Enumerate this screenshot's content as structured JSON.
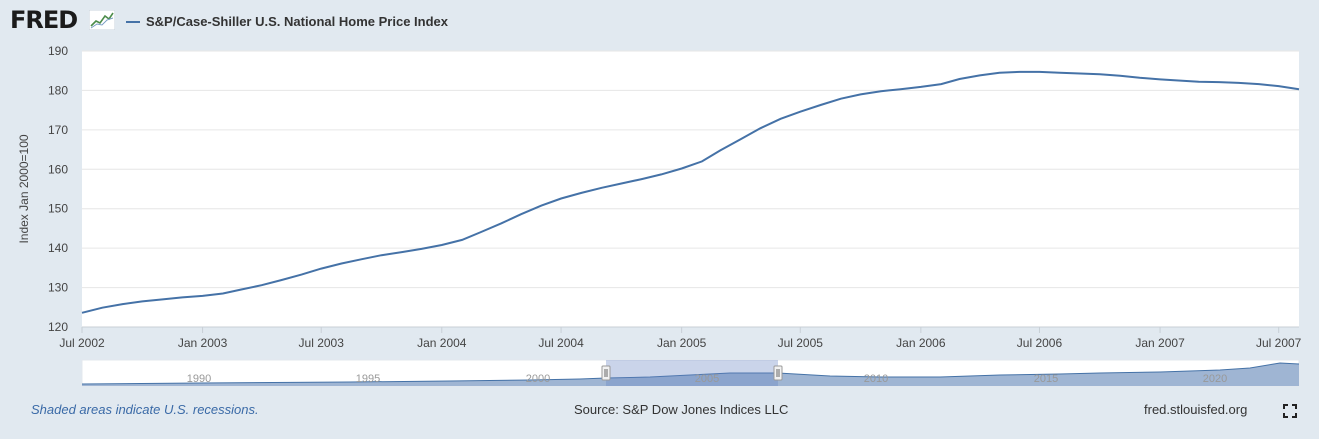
{
  "logo": {
    "text": "FRED",
    "icon": "line-chart-icon"
  },
  "chart_data": {
    "type": "line",
    "title": "S&P/Case-Shiller U.S. National Home Price Index",
    "ylabel": "Index Jan 2000=100",
    "xlabel": "",
    "ylim": [
      120,
      190
    ],
    "xlim": [
      "2002-07-01",
      "2007-08-01"
    ],
    "yticks": [
      120,
      130,
      140,
      150,
      160,
      170,
      180,
      190
    ],
    "xticks": [
      {
        "label": "Jul 2002",
        "date": "2002-07-01"
      },
      {
        "label": "Jan 2003",
        "date": "2003-01-01"
      },
      {
        "label": "Jul 2003",
        "date": "2003-07-01"
      },
      {
        "label": "Jan 2004",
        "date": "2004-01-01"
      },
      {
        "label": "Jul 2004",
        "date": "2004-07-01"
      },
      {
        "label": "Jan 2005",
        "date": "2005-01-01"
      },
      {
        "label": "Jul 2005",
        "date": "2005-07-01"
      },
      {
        "label": "Jan 2006",
        "date": "2006-01-01"
      },
      {
        "label": "Jul 2006",
        "date": "2006-07-01"
      },
      {
        "label": "Jan 2007",
        "date": "2007-01-01"
      },
      {
        "label": "Jul 2007",
        "date": "2007-07-01"
      }
    ],
    "grid": true,
    "series": [
      {
        "name": "S&P/Case-Shiller U.S. National Home Price Index",
        "color": "#4572a7",
        "x": [
          "2002-07-01",
          "2002-08-01",
          "2002-09-01",
          "2002-10-01",
          "2002-11-01",
          "2002-12-01",
          "2003-01-01",
          "2003-02-01",
          "2003-03-01",
          "2003-04-01",
          "2003-05-01",
          "2003-06-01",
          "2003-07-01",
          "2003-08-01",
          "2003-09-01",
          "2003-10-01",
          "2003-11-01",
          "2003-12-01",
          "2004-01-01",
          "2004-02-01",
          "2004-03-01",
          "2004-04-01",
          "2004-05-01",
          "2004-06-01",
          "2004-07-01",
          "2004-08-01",
          "2004-09-01",
          "2004-10-01",
          "2004-11-01",
          "2004-12-01",
          "2005-01-01",
          "2005-02-01",
          "2005-03-01",
          "2005-04-01",
          "2005-05-01",
          "2005-06-01",
          "2005-07-01",
          "2005-08-01",
          "2005-09-01",
          "2005-10-01",
          "2005-11-01",
          "2005-12-01",
          "2006-01-01",
          "2006-02-01",
          "2006-03-01",
          "2006-04-01",
          "2006-05-01",
          "2006-06-01",
          "2006-07-01",
          "2006-08-01",
          "2006-09-01",
          "2006-10-01",
          "2006-11-01",
          "2006-12-01",
          "2007-01-01",
          "2007-02-01",
          "2007-03-01",
          "2007-04-01",
          "2007-05-01",
          "2007-06-01",
          "2007-07-01",
          "2007-08-01"
        ],
        "y": [
          123.6,
          124.9,
          125.8,
          126.5,
          127.0,
          127.5,
          127.9,
          128.5,
          129.5,
          130.6,
          131.9,
          133.3,
          134.8,
          136.1,
          137.2,
          138.2,
          139.0,
          139.8,
          140.8,
          142.1,
          144.1,
          146.3,
          148.6,
          150.8,
          152.6,
          154.0,
          155.3,
          156.4,
          157.5,
          158.7,
          160.2,
          162.0,
          164.8,
          167.6,
          170.4,
          172.8,
          174.6,
          176.3,
          177.9,
          179.0,
          179.8,
          180.3,
          180.9,
          181.6,
          182.9,
          183.8,
          184.5,
          184.7,
          184.7,
          184.5,
          184.3,
          184.1,
          183.7,
          183.2,
          182.8,
          182.5,
          182.2,
          182.1,
          181.9,
          181.6,
          181.1,
          180.3
        ]
      }
    ]
  },
  "navigator": {
    "labels": [
      "1990",
      "1995",
      "2000",
      "2005",
      "2010",
      "2015",
      "2020"
    ]
  },
  "footer": {
    "recession_note": "Shaded areas indicate U.S. recessions.",
    "source": "Source: S&P Dow Jones Indices LLC",
    "site": "fred.stlouisfed.org",
    "fullscreen_icon": "fullscreen-icon"
  }
}
